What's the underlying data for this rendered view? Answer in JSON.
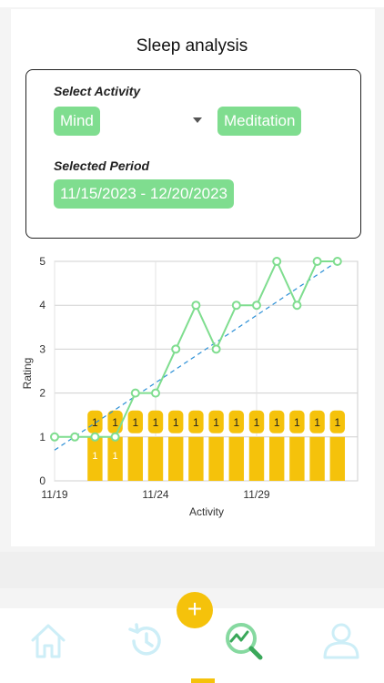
{
  "header": {
    "title": "Sleep analysis"
  },
  "filters": {
    "activity_label": "Select Activity",
    "activity_category": "Mind",
    "activity_value": "Meditation",
    "period_label": "Selected Period",
    "period_value": "11/15/2023 - 12/20/2023"
  },
  "chart_data": {
    "type": "line",
    "xlabel": "Activity",
    "ylabel": "Rating",
    "x_tick_labels": [
      "11/19",
      "11/24",
      "11/29"
    ],
    "y_ticks": [
      0,
      1,
      2,
      3,
      4,
      5
    ],
    "ylim": [
      0,
      5
    ],
    "xlim": [
      "11/19",
      "12/4"
    ],
    "grid": true,
    "colors": {
      "line": "#7fdd8f",
      "trend": "#2b8fd6",
      "bar": "#f5c20b"
    },
    "series": [
      {
        "x": [
          "11/19",
          "11/20",
          "11/21",
          "11/22",
          "11/23",
          "11/24",
          "11/25",
          "11/26",
          "11/27",
          "11/28",
          "11/29",
          "11/30",
          "12/1",
          "12/2",
          "12/3",
          "12/4"
        ],
        "values": [
          1,
          1,
          1,
          1,
          2,
          2,
          3,
          4,
          3,
          4,
          4,
          5,
          4,
          5,
          5,
          null
        ]
      }
    ],
    "bars": {
      "x": [
        "11/21",
        "11/22",
        "11/23",
        "11/24",
        "11/25",
        "11/26",
        "11/27",
        "11/28",
        "11/29",
        "11/30",
        "12/1",
        "12/2",
        "12/3"
      ],
      "values": [
        1,
        1,
        1,
        1,
        1,
        1,
        1,
        1,
        1,
        1,
        1,
        1,
        1
      ]
    },
    "trendline": {
      "from": [
        "11/19",
        0.7
      ],
      "to": [
        "12/3",
        5.0
      ]
    }
  },
  "nav": {
    "items": [
      {
        "icon": "home-icon"
      },
      {
        "icon": "history-icon"
      },
      {
        "icon": "analysis-icon"
      },
      {
        "icon": "profile-icon"
      }
    ],
    "fab": "+"
  }
}
